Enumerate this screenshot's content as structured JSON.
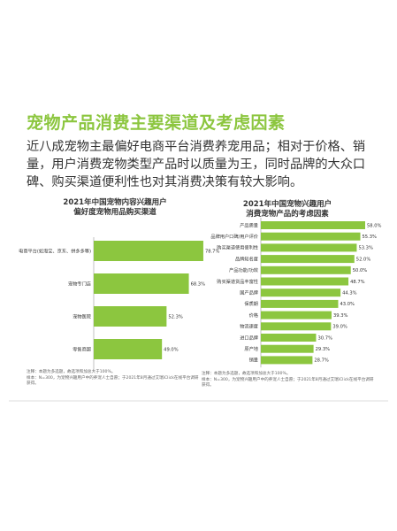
{
  "heading": "宠物产品消费主要渠道及考虑因素",
  "paragraph": "近八成宠物主最偏好电商平台消费养宠用品；相对于价格、销量，用户消费宠物类型产品时以质量为王，同时品牌的大众口碑、购买渠道便利性也对其消费决策有较大影响。",
  "colors": {
    "accent": "#8cc63f",
    "bar": "#8cc63f"
  },
  "left_chart": {
    "title_line1": "2021年中国宠物内容兴趣用户",
    "title_line2": "偏好度宠物用品购买渠道",
    "note_line1": "注释：本题为多选题，故选项和加总大于100%。",
    "note_line2": "样本：N=300，为宠物兴趣用户中的养宠人士自愿；于2021年8月通过艾瑞iClick在线平台调研获得。"
  },
  "right_chart": {
    "title_line1": "2021年中国宠物兴趣用户",
    "title_line2": "消费宠物产品的考虑因素",
    "note_line1": "注释：本题为多选题，故选项和加总大于100%。",
    "note_line2": "样本：N=300，为宠物兴趣用户中的养宠人士自愿；于2021年8月通过艾瑞iClick在线平台调研获得。"
  },
  "chart_data": [
    {
      "type": "bar",
      "orientation": "horizontal",
      "title": "2021年中国宠物内容兴趣用户偏好度宠物用品购买渠道",
      "categories": [
        "电商平台(如淘宝、京东、拼多多等)",
        "宠物专门店",
        "宠物医院",
        "零售商超"
      ],
      "values": [
        78.7,
        68.3,
        52.3,
        49.0
      ],
      "labels": [
        "78.7%",
        "68.3%",
        "52.3%",
        "49.0%"
      ],
      "unit": "%",
      "xlim": [
        0,
        80
      ]
    },
    {
      "type": "bar",
      "orientation": "horizontal",
      "title": "2021年中国宠物兴趣用户消费宠物产品的考虑因素",
      "categories": [
        "产品质量",
        "品牌用户口碑/用户评价",
        "购买渠道使用便利性",
        "品牌知名度",
        "产品功能/功效",
        "购买渠道货品丰富性",
        "国产品牌",
        "保质期",
        "价格",
        "物流速度",
        "进口品牌",
        "原产地",
        "销量"
      ],
      "values": [
        58.0,
        55.3,
        53.3,
        52.0,
        50.0,
        48.7,
        44.3,
        43.0,
        39.3,
        39.0,
        30.7,
        29.3,
        28.7
      ],
      "labels": [
        "58.0%",
        "55.3%",
        "53.3%",
        "52.0%",
        "50.0%",
        "48.7%",
        "44.3%",
        "43.0%",
        "39.3%",
        "39.0%",
        "30.7%",
        "29.3%",
        "28.7%"
      ],
      "unit": "%",
      "xlim": [
        0,
        58
      ]
    }
  ]
}
